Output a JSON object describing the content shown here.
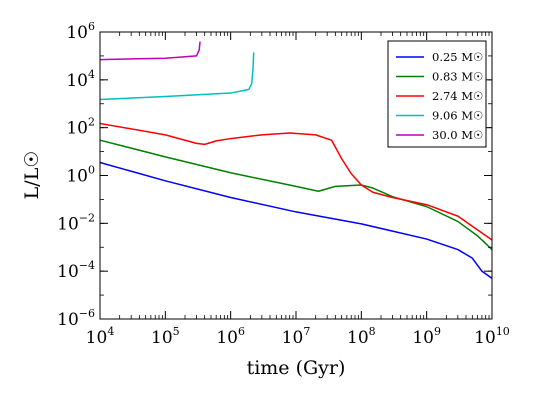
{
  "chart_data": {
    "type": "line",
    "title": "",
    "xlabel": "time (Gyr)",
    "ylabel": "L/L☉",
    "x_scale": "log",
    "y_scale": "log",
    "xlim": [
      10000,
      10000000000
    ],
    "ylim": [
      1e-06,
      1000000
    ],
    "x_ticks": [
      {
        "base": "10",
        "exp": "4",
        "value": 10000
      },
      {
        "base": "10",
        "exp": "5",
        "value": 100000
      },
      {
        "base": "10",
        "exp": "6",
        "value": 1000000
      },
      {
        "base": "10",
        "exp": "7",
        "value": 10000000
      },
      {
        "base": "10",
        "exp": "8",
        "value": 100000000
      },
      {
        "base": "10",
        "exp": "9",
        "value": 1000000000
      },
      {
        "base": "10",
        "exp": "10",
        "value": 10000000000
      }
    ],
    "y_ticks": [
      {
        "base": "10",
        "exp": "−6",
        "value": 1e-06
      },
      {
        "base": "10",
        "exp": "−4",
        "value": 0.0001
      },
      {
        "base": "10",
        "exp": "−2",
        "value": 0.01
      },
      {
        "base": "10",
        "exp": "0",
        "value": 1
      },
      {
        "base": "10",
        "exp": "2",
        "value": 100
      },
      {
        "base": "10",
        "exp": "4",
        "value": 10000
      },
      {
        "base": "10",
        "exp": "6",
        "value": 1000000
      }
    ],
    "grid": false,
    "legend_position": "top-right",
    "series": [
      {
        "name": "0.25 M☉",
        "color": "#0000ff",
        "points": [
          [
            10000,
            3.5
          ],
          [
            100000,
            0.6
          ],
          [
            1000000,
            0.12
          ],
          [
            10000000,
            0.03
          ],
          [
            100000000,
            0.0095
          ],
          [
            1000000000,
            0.0022
          ],
          [
            3000000000,
            0.0008
          ],
          [
            5000000000,
            0.00035
          ],
          [
            7000000000,
            0.0001
          ],
          [
            10000000000,
            5e-05
          ]
        ]
      },
      {
        "name": "0.83 M☉",
        "color": "#008000",
        "points": [
          [
            10000,
            30
          ],
          [
            100000,
            6
          ],
          [
            1000000,
            1.3
          ],
          [
            10000000,
            0.35
          ],
          [
            22000000,
            0.22
          ],
          [
            40000000,
            0.35
          ],
          [
            100000000,
            0.4
          ],
          [
            150000000,
            0.3
          ],
          [
            300000000,
            0.13
          ],
          [
            1000000000,
            0.05
          ],
          [
            3000000000,
            0.012
          ],
          [
            6000000000,
            0.003
          ],
          [
            10000000000,
            0.0008
          ]
        ]
      },
      {
        "name": "2.74 M☉",
        "color": "#ff0000",
        "points": [
          [
            10000,
            150
          ],
          [
            100000,
            50
          ],
          [
            300000,
            22
          ],
          [
            400000,
            20
          ],
          [
            600000,
            28
          ],
          [
            1000000,
            35
          ],
          [
            3000000,
            50
          ],
          [
            8000000,
            60
          ],
          [
            20000000,
            50
          ],
          [
            35000000,
            30
          ],
          [
            50000000,
            5
          ],
          [
            70000000,
            1.2
          ],
          [
            100000000,
            0.4
          ],
          [
            150000000,
            0.2
          ],
          [
            300000000,
            0.12
          ],
          [
            1000000000,
            0.06
          ],
          [
            3000000000,
            0.02
          ],
          [
            10000000000,
            0.002
          ]
        ]
      },
      {
        "name": "9.06 M☉",
        "color": "#00bfbf",
        "points": [
          [
            10000,
            1500
          ],
          [
            100000,
            2000
          ],
          [
            1000000,
            2800
          ],
          [
            1900000,
            4000
          ],
          [
            2100000,
            7000
          ],
          [
            2200000,
            30000
          ],
          [
            2250000,
            140000
          ]
        ]
      },
      {
        "name": "30.0 M☉",
        "color": "#bf00bf",
        "points": [
          [
            10000,
            70000
          ],
          [
            100000,
            80000
          ],
          [
            300000,
            100000
          ],
          [
            330000,
            180000
          ],
          [
            340000,
            400000
          ]
        ]
      }
    ]
  }
}
